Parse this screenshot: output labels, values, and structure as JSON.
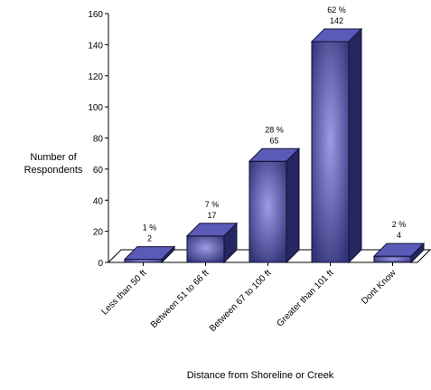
{
  "chart_data": {
    "type": "bar",
    "categories": [
      "Less than 50 ft",
      "Between 51 to 66 ft",
      "Between 67 to 100 ft",
      "Greater than 101 ft",
      "Dont Know"
    ],
    "values": [
      2,
      17,
      65,
      142,
      4
    ],
    "percent_labels": [
      "1 %",
      "7 %",
      "28 %",
      "62 %",
      "2 %"
    ],
    "value_labels": [
      "2",
      "17",
      "65",
      "142",
      "4"
    ],
    "ylabel": "Number of Respondents",
    "xlabel": "Distance from Shoreline or Creek",
    "ylim": [
      0,
      160
    ],
    "yticks": [
      0,
      20,
      40,
      60,
      80,
      100,
      120,
      140,
      160
    ],
    "grid": false,
    "legend": "none",
    "colors": {
      "bar_front_edge": "#34347a",
      "bar_front_center": "#9c9ce6",
      "bar_top": "#5a5ab8",
      "bar_side": "#262660",
      "axis": "#000000"
    }
  }
}
